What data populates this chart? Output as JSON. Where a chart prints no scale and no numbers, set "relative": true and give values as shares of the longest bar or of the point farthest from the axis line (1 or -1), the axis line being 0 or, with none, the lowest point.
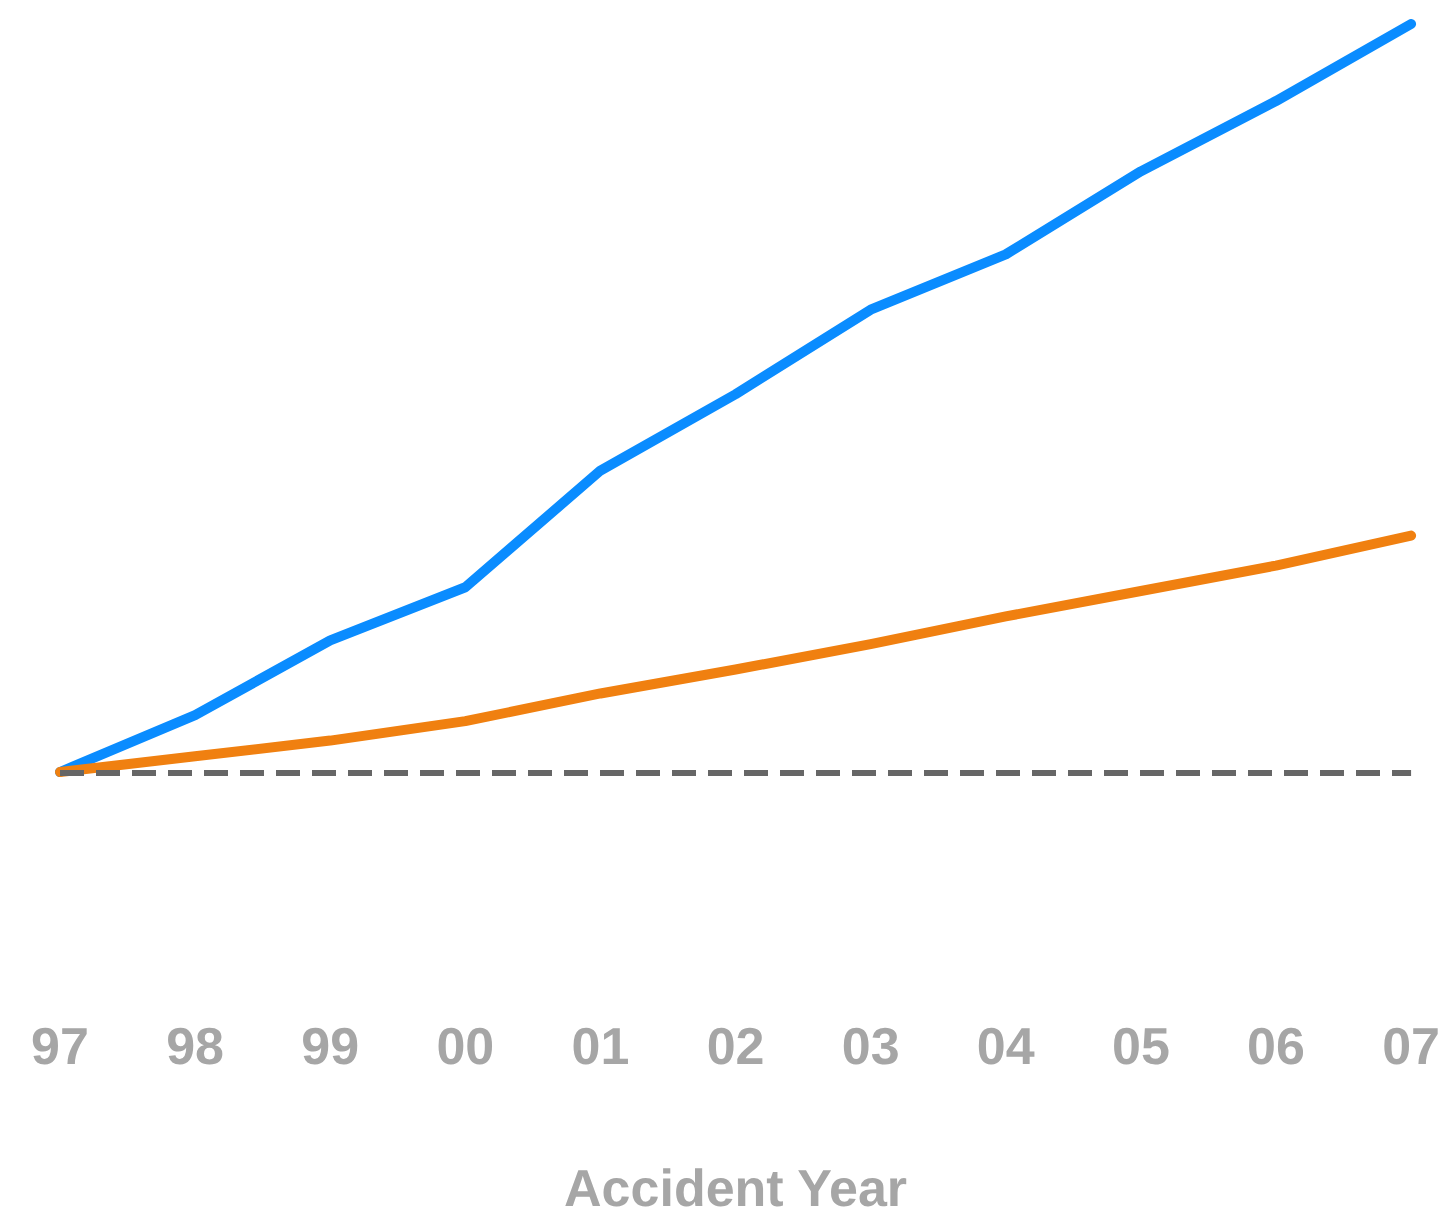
{
  "chart_data": {
    "type": "line",
    "relative": true,
    "xlabel": "Accident Year",
    "categories": [
      "97",
      "98",
      "99",
      "00",
      "01",
      "02",
      "03",
      "04",
      "05",
      "06",
      "07"
    ],
    "series": [
      {
        "color": "#0a8cff",
        "values": [
          0,
          0.076,
          0.176,
          0.247,
          0.403,
          0.505,
          0.618,
          0.692,
          0.803,
          0.897,
          1
        ]
      },
      {
        "color": "#f08010",
        "values": [
          0,
          0.021,
          0.042,
          0.068,
          0.105,
          0.137,
          0.171,
          0.208,
          0.242,
          0.276,
          0.316
        ]
      }
    ],
    "ref_lines": [
      {
        "axis": "y",
        "value": 0,
        "color": "#666666",
        "line_style": "dashed"
      }
    ],
    "grid": false,
    "marker": "none",
    "line_style": "solid"
  }
}
